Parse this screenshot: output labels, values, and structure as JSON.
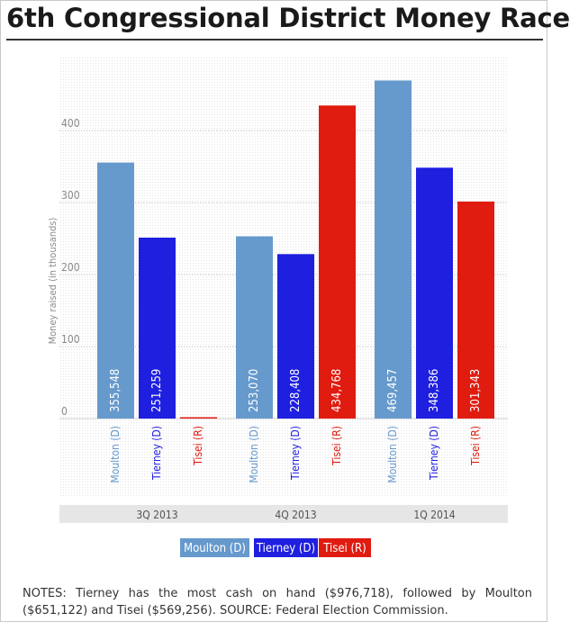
{
  "title": "6th Congressional District Money Race",
  "notes": "NOTES: Tierney has the most cash on hand ($976,718), followed by Moulton ($651,122) and Tisei ($569,256). SOURCE: Federal Election Commission.",
  "chart_data": {
    "type": "bar",
    "title": "6th Congressional District Money Race",
    "ylabel": "Money raised (in thousands)",
    "ylim": [
      0,
      470
    ],
    "yticks": [
      0,
      100,
      200,
      300,
      400
    ],
    "grid": true,
    "legend_placement": "bottom-center",
    "categories": [
      "3Q 2013",
      "4Q 2013",
      "1Q 2014"
    ],
    "series": [
      {
        "name": "Moulton (D)",
        "color": "#6699cc",
        "values": [
          355.548,
          253.07,
          469.457
        ],
        "data_labels": [
          "355,548",
          "253,070",
          "469,457"
        ]
      },
      {
        "name": "Tierney (D)",
        "color": "#1f1fe0",
        "values": [
          251.259,
          228.408,
          348.386
        ],
        "data_labels": [
          "251,259",
          "228,408",
          "348,386"
        ]
      },
      {
        "name": "Tisei (R)",
        "color": "#e01b10",
        "values": [
          0,
          434.768,
          301.343
        ],
        "data_labels": [
          "",
          "434,768",
          "301,343"
        ]
      }
    ]
  }
}
